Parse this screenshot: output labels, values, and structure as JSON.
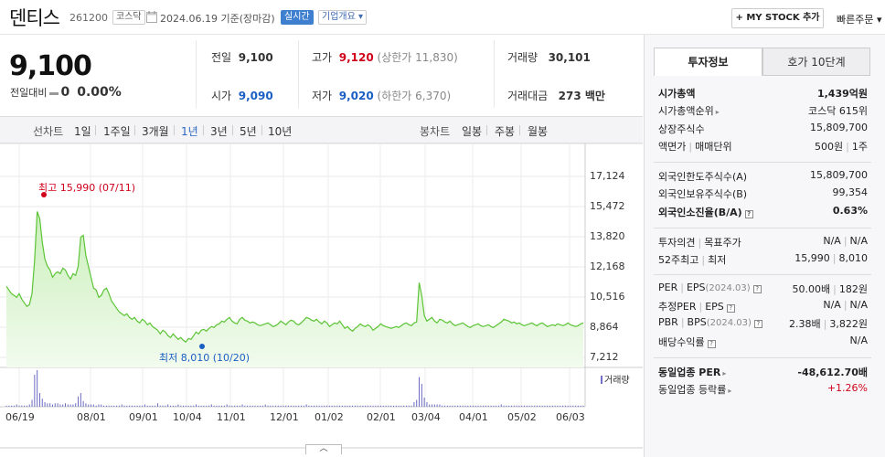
{
  "header": {
    "name": "덴티스",
    "code": "261200",
    "market": "코스닥",
    "date": "2024.06.19 기준(장마감)",
    "realtime": "실시간",
    "company_overview": "기업개요 ▾",
    "my_stock": "+ MY STOCK 추가",
    "quick_order": "빠른주문 ▾"
  },
  "summary": {
    "price": "9,100",
    "change_label": "전일대비",
    "change_value": "0",
    "change_rate": "0.00%",
    "prev_label": "전일",
    "prev_value": "9,100",
    "high_label": "고가",
    "high_value": "9,120",
    "upper_limit": "(상한가 11,830)",
    "volume_label": "거래량",
    "volume_value": "30,101",
    "open_label": "시가",
    "open_value": "9,090",
    "low_label": "저가",
    "low_value": "9,020",
    "lower_limit": "(하한가 6,370)",
    "amount_label": "거래대금",
    "amount_value": "273 백만"
  },
  "period_bar": {
    "line_chart_label": "선차트",
    "periods": [
      "1일",
      "1주일",
      "3개월",
      "1년",
      "3년",
      "5년",
      "10년"
    ],
    "selected": "1년",
    "candle_label": "봉차트",
    "candles": [
      "일봉",
      "주봉",
      "월봉"
    ]
  },
  "chart_data": {
    "type": "area",
    "y_ticks": [
      "17,124",
      "15,472",
      "13,820",
      "12,168",
      "10,516",
      "8,864",
      "7,212"
    ],
    "x_ticks": [
      "06/19",
      "08/01",
      "09/01",
      "10/04",
      "11/01",
      "12/01",
      "01/02",
      "02/01",
      "03/04",
      "04/01",
      "05/02",
      "06/03"
    ],
    "ylim": [
      7212,
      17124
    ],
    "high_label": "최고 15,990 (07/11)",
    "low_label": "최저 8,010 (10/20)",
    "volume_legend": "거래량",
    "price_series": [
      11100,
      10900,
      10700,
      10600,
      10500,
      10700,
      10400,
      10200,
      10000,
      10100,
      10700,
      12500,
      15200,
      14800,
      13500,
      12600,
      12200,
      12000,
      11600,
      11800,
      11900,
      11800,
      12100,
      12000,
      11700,
      11500,
      11800,
      11700,
      12200,
      13800,
      13900,
      12800,
      12200,
      11600,
      11000,
      10900,
      10500,
      10600,
      10900,
      11000,
      10700,
      10300,
      10100,
      9900,
      9700,
      9600,
      9500,
      9600,
      9400,
      9300,
      9400,
      9200,
      9100,
      9300,
      9200,
      9000,
      9100,
      8900,
      8800,
      8700,
      8500,
      8700,
      8600,
      8400,
      8300,
      8500,
      8350,
      8200,
      8300,
      8150,
      8050,
      8250,
      8200,
      8400,
      8600,
      8500,
      8700,
      8750,
      8650,
      8800,
      8900,
      8850,
      9000,
      9050,
      9200,
      9150,
      9300,
      9400,
      9200,
      9100,
      9050,
      9300,
      9400,
      9250,
      9200,
      9100,
      9150,
      9100,
      9000,
      8950,
      9000,
      9050,
      9100,
      9000,
      8900,
      8950,
      9050,
      9200,
      9100,
      9000,
      9150,
      9250,
      9200,
      9050,
      9000,
      9100,
      9250,
      9400,
      9350,
      9250,
      9200,
      9300,
      9150,
      9050,
      9200,
      9100,
      8900,
      9000,
      9100,
      9050,
      9200,
      9000,
      8800,
      8900,
      8750,
      8650,
      8800,
      8900,
      9050,
      8950,
      8900,
      9000,
      8900,
      8700,
      8800,
      8900,
      9050,
      8950,
      8900,
      8850,
      8800,
      8850,
      8900,
      8850,
      8950,
      9050,
      9100,
      9000,
      8950,
      9100,
      9150,
      11300,
      10600,
      9500,
      9200,
      9300,
      9400,
      9200,
      9100,
      9300,
      9250,
      9150,
      9100,
      9200,
      9050,
      8950,
      9000,
      9050,
      9100,
      9000,
      8900,
      8850,
      8950,
      9000,
      9050,
      8950,
      8900,
      8950,
      9000,
      8900,
      8850,
      8950,
      9050,
      9150,
      9300,
      9250,
      9200,
      9100,
      9150,
      9050,
      9100,
      9000,
      8950,
      9000,
      9050,
      9100,
      9000,
      8950,
      9050,
      9100,
      9000,
      8900,
      8950,
      9000,
      8950,
      9050,
      9000,
      8950,
      9000,
      9100,
      9000,
      8950,
      8900,
      8950,
      9050,
      9100
    ],
    "volume_series": [
      1,
      1,
      1,
      1,
      2,
      1,
      1,
      1,
      1,
      2,
      6,
      28,
      32,
      12,
      7,
      4,
      3,
      3,
      2,
      3,
      3,
      2,
      2,
      3,
      2,
      2,
      2,
      3,
      9,
      12,
      5,
      3,
      2,
      2,
      2,
      1,
      2,
      2,
      1,
      1,
      1,
      1,
      1,
      1,
      1,
      2,
      1,
      1,
      1,
      1,
      1,
      1,
      1,
      1,
      2,
      1,
      1,
      1,
      1,
      3,
      1,
      1,
      1,
      2,
      1,
      1,
      1,
      2,
      1,
      1,
      1,
      1,
      1,
      1,
      2,
      1,
      1,
      1,
      1,
      1,
      2,
      1,
      1,
      1,
      1,
      1,
      2,
      1,
      1,
      1,
      1,
      1,
      2,
      1,
      1,
      1,
      1,
      1,
      1,
      1,
      1,
      2,
      1,
      1,
      1,
      1,
      1,
      1,
      1,
      1,
      1,
      1,
      1,
      1,
      1,
      1,
      1,
      2,
      1,
      1,
      1,
      1,
      1,
      1,
      1,
      1,
      1,
      1,
      1,
      1,
      1,
      1,
      1,
      1,
      1,
      1,
      1,
      1,
      1,
      1,
      1,
      1,
      1,
      1,
      1,
      1,
      1,
      1,
      1,
      1,
      1,
      1,
      1,
      1,
      1,
      1,
      1,
      1,
      1,
      4,
      6,
      26,
      20,
      8,
      4,
      2,
      2,
      2,
      2,
      2,
      1,
      1,
      1,
      1,
      1,
      1,
      1,
      1,
      1,
      1,
      1,
      1,
      1,
      1,
      1,
      1,
      1,
      1,
      1,
      1,
      1,
      1,
      1,
      2,
      1,
      1,
      1,
      1,
      1,
      1,
      1,
      1,
      1,
      1,
      1,
      1,
      1,
      1,
      1,
      1,
      1,
      1,
      1,
      1,
      1,
      1,
      1,
      1,
      1,
      1,
      1,
      1,
      1,
      1,
      1,
      1
    ],
    "grid": true,
    "colors": {
      "line": "#5cc436",
      "fill_top": "#c9efb9",
      "fill_bottom": "#f2fbee",
      "volume": "#6a6ac4",
      "high": "#d0021b",
      "low": "#1a5fc4"
    }
  },
  "right_panel": {
    "tab_active": "투자정보",
    "tab_other": "호가 10단계",
    "market_cap_label": "시가총액",
    "market_cap_value": "1,439억원",
    "market_cap_rank_label": "시가총액순위",
    "market_cap_rank_value": "코스닥 615위",
    "listed_shares_label": "상장주식수",
    "listed_shares_value": "15,809,700",
    "face_value_label": "액면가",
    "trade_unit_label": "매매단위",
    "face_value": "500원",
    "trade_unit": "1주",
    "foreign_limit_label": "외국인한도주식수(A)",
    "foreign_limit_value": "15,809,700",
    "foreign_hold_label": "외국인보유주식수(B)",
    "foreign_hold_value": "99,354",
    "foreign_ratio_label": "외국인소진율(B/A)",
    "foreign_ratio_value": "0.63%",
    "opinion_label": "투자의견",
    "target_label": "목표주가",
    "opinion_value": "N/A",
    "target_value": "N/A",
    "week52_high_label": "52주최고",
    "week52_low_label": "최저",
    "week52_high": "15,990",
    "week52_low": "8,010",
    "per_label": "PER",
    "eps_label": "EPS",
    "per_eps_period": "(2024.03)",
    "per_value": "50.00배",
    "eps_value": "182원",
    "est_per_label": "추정PER",
    "est_eps_label": "EPS",
    "est_per_value": "N/A",
    "est_eps_value": "N/A",
    "pbr_label": "PBR",
    "bps_label": "BPS",
    "pbr_bps_period": "(2024.03)",
    "pbr_value": "2.38배",
    "bps_value": "3,822원",
    "dividend_label": "배당수익률",
    "dividend_value": "N/A",
    "sector_per_label": "동일업종 PER",
    "sector_per_value": "-48,612.70배",
    "sector_change_label": "동일업종 등락률",
    "sector_change_value": "+1.26%"
  }
}
